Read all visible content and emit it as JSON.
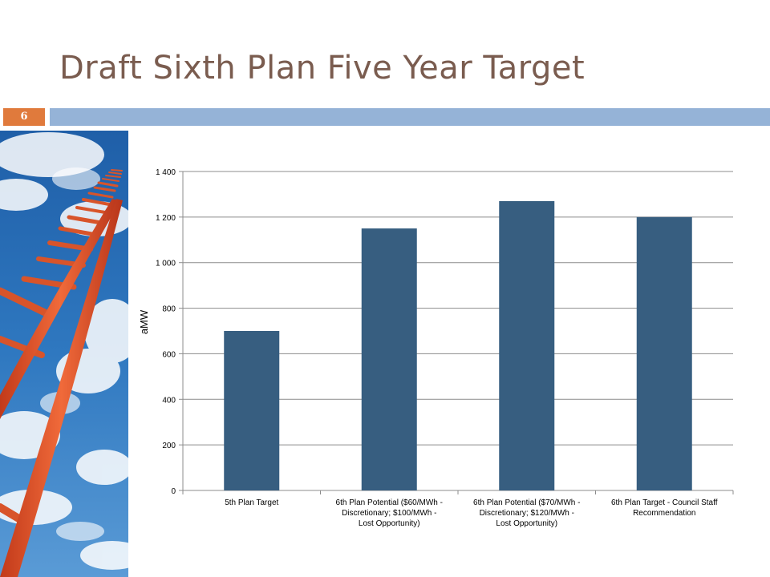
{
  "slide": {
    "title": "Draft Sixth Plan Five Year Target",
    "number": "6",
    "side_image": "ladder-to-sky-image"
  },
  "colors": {
    "title": "#7a5c4f",
    "number_badge": "#e07a3c",
    "header_bar": "#95b3d7",
    "bar": "#375e80",
    "ladder": "#e8572e",
    "sky": "#2a6fb5"
  },
  "chart_data": {
    "type": "bar",
    "title": "",
    "xlabel": "",
    "ylabel": "aMW",
    "ylim": [
      0,
      1400
    ],
    "yticks": [
      0,
      200,
      400,
      600,
      800,
      1000,
      1200,
      1400
    ],
    "ytick_labels": [
      "0",
      "200",
      "400",
      "600",
      "800",
      "1 000",
      "1 200",
      "1 400"
    ],
    "grid": true,
    "categories": [
      [
        "5th Plan Target"
      ],
      [
        "6th Plan Potential ($60/MWh -",
        "Discretionary; $100/MWh -",
        "Lost Opportunity)"
      ],
      [
        "6th Plan Potential ($70/MWh -",
        "Discretionary; $120/MWh -",
        "Lost Opportunity)"
      ],
      [
        "6th Plan Target - Council Staff",
        "Recommendation"
      ]
    ],
    "values": [
      700,
      1150,
      1270,
      1200
    ]
  }
}
